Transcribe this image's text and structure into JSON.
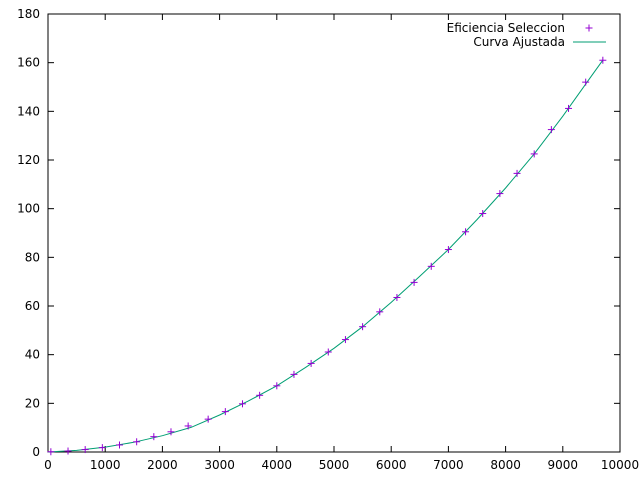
{
  "chart_data": {
    "type": "scatter",
    "xlim": [
      0,
      10000
    ],
    "ylim": [
      0,
      180
    ],
    "x_ticks": [
      0,
      1000,
      2000,
      3000,
      4000,
      5000,
      6000,
      7000,
      8000,
      9000,
      10000
    ],
    "y_ticks": [
      0,
      20,
      40,
      60,
      80,
      100,
      120,
      140,
      160,
      180
    ],
    "grid": false,
    "legend_position": "top-right",
    "series": [
      {
        "name": "Eficiencia Seleccion",
        "kind": "points",
        "marker": "plus",
        "color": "#9400d3",
        "x": [
          50,
          350,
          650,
          950,
          1250,
          1550,
          1850,
          2150,
          2450,
          2800,
          3100,
          3400,
          3700,
          4000,
          4300,
          4600,
          4900,
          5200,
          5500,
          5800,
          6100,
          6400,
          6700,
          7000,
          7300,
          7600,
          7900,
          8200,
          8500,
          8800,
          9100,
          9400,
          9700
        ],
        "y": [
          0.1,
          0.4,
          1.0,
          1.8,
          2.9,
          4.2,
          6.3,
          8.3,
          10.7,
          13.5,
          16.6,
          19.8,
          23.3,
          27.2,
          31.9,
          36.4,
          41.1,
          46.2,
          51.5,
          57.6,
          63.5,
          69.7,
          76.3,
          83.2,
          90.5,
          98.0,
          106.2,
          114.5,
          122.5,
          132.5,
          141.2,
          152.0,
          161.0
        ]
      },
      {
        "name": "Curva Ajustada",
        "kind": "line",
        "color": "#009e73",
        "x": [
          0,
          500,
          1000,
          1500,
          2000,
          2500,
          3000,
          3500,
          4000,
          4500,
          5000,
          5500,
          6000,
          6500,
          7000,
          7500,
          8000,
          8500,
          9000,
          9500,
          9700
        ],
        "y": [
          0,
          0.65,
          2.0,
          4.0,
          6.7,
          10.1,
          15.2,
          20.9,
          27.2,
          34.7,
          42.6,
          51.5,
          61.5,
          72.2,
          83.2,
          95.5,
          108.5,
          122.5,
          138.0,
          154.5,
          161.0
        ]
      }
    ]
  }
}
